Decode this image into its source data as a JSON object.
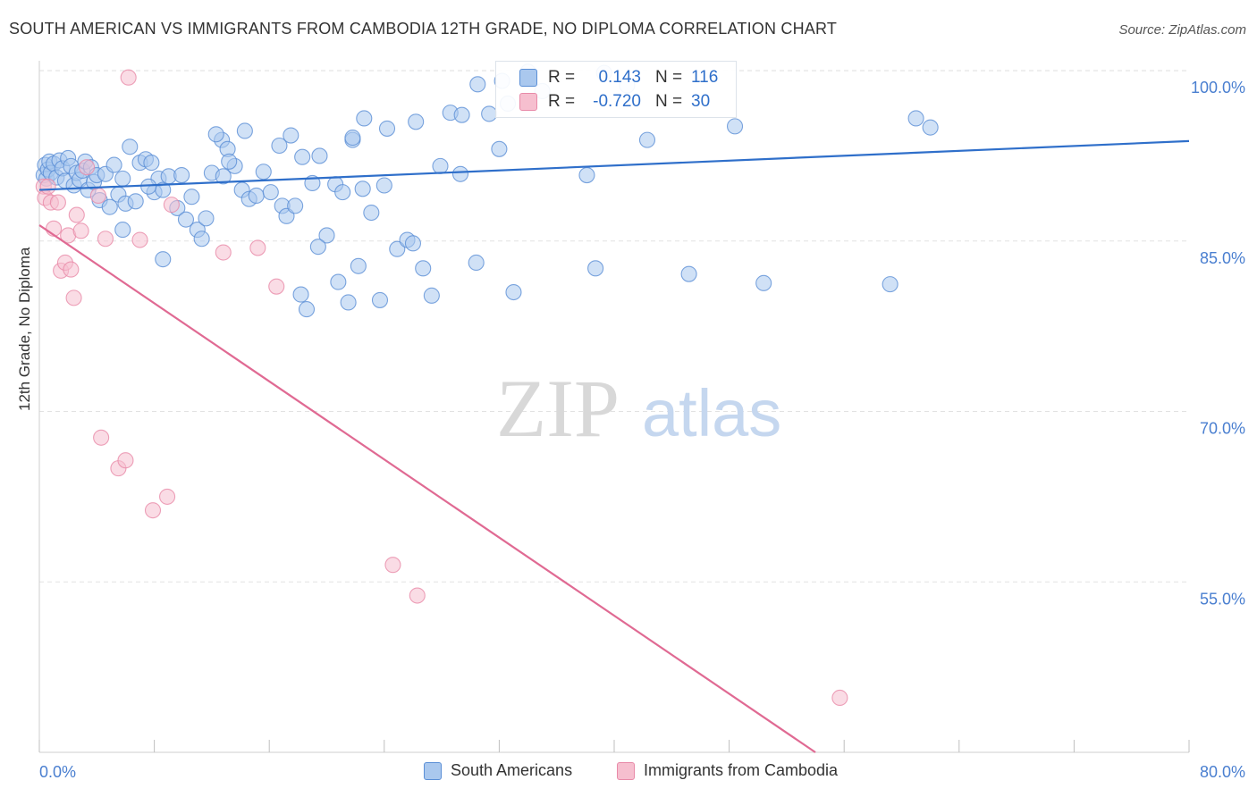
{
  "header": {
    "title": "SOUTH AMERICAN VS IMMIGRANTS FROM CAMBODIA 12TH GRADE, NO DIPLOMA CORRELATION CHART",
    "source": "Source: ZipAtlas.com"
  },
  "watermark": {
    "zip": "ZIP",
    "atlas": "atlas"
  },
  "stats": {
    "r_label": "R =",
    "n_label": "N =",
    "rows": [
      {
        "r": "0.143",
        "n": "116"
      },
      {
        "r": "-0.720",
        "n": "30"
      }
    ]
  },
  "legend": {
    "items": [
      "South Americans",
      "Immigrants from Cambodia"
    ]
  },
  "colors": {
    "blue_fill": "#aac8ee",
    "blue_stroke": "#5b8fd6",
    "blue_line": "#2f6fca",
    "pink_fill": "#f6bfcf",
    "pink_stroke": "#e88aa8",
    "pink_line": "#e06a93",
    "tick_text": "#4a7fd0",
    "grid": "#e2e2e2"
  },
  "chart_data": {
    "type": "scatter",
    "title": "SOUTH AMERICAN VS IMMIGRANTS FROM CAMBODIA 12TH GRADE, NO DIPLOMA CORRELATION CHART",
    "xlabel": "",
    "ylabel": "12th Grade, No Diploma",
    "xlim": [
      0,
      80
    ],
    "ylim": [
      40,
      101.5
    ],
    "x_tick_labels": [
      "0.0%",
      "80.0%"
    ],
    "y_ticks": [
      55,
      70,
      85,
      100
    ],
    "y_tick_labels": [
      "55.0%",
      "70.0%",
      "85.0%",
      "100.0%"
    ],
    "grid": true,
    "legend_position": "bottom",
    "series": [
      {
        "name": "South Americans",
        "r": 0.143,
        "n": 116,
        "trend": {
          "x0": 0,
          "y0": 89.5,
          "x1": 80,
          "y1": 93.8
        },
        "points": [
          [
            0.3,
            90.8
          ],
          [
            0.4,
            91.7
          ],
          [
            0.5,
            90.5
          ],
          [
            0.6,
            91.3
          ],
          [
            0.7,
            92.0
          ],
          [
            0.8,
            91.0
          ],
          [
            1.0,
            91.8
          ],
          [
            1.2,
            90.6
          ],
          [
            1.4,
            92.1
          ],
          [
            1.6,
            91.4
          ],
          [
            1.8,
            90.3
          ],
          [
            2.0,
            92.3
          ],
          [
            2.2,
            91.6
          ],
          [
            2.4,
            89.9
          ],
          [
            2.6,
            91.0
          ],
          [
            2.8,
            90.4
          ],
          [
            3.0,
            91.2
          ],
          [
            3.2,
            92.0
          ],
          [
            3.4,
            89.5
          ],
          [
            3.6,
            91.5
          ],
          [
            3.8,
            90.2
          ],
          [
            4.0,
            90.8
          ],
          [
            4.2,
            88.6
          ],
          [
            4.6,
            90.9
          ],
          [
            4.9,
            88.0
          ],
          [
            5.2,
            91.7
          ],
          [
            5.5,
            89.1
          ],
          [
            5.8,
            90.5
          ],
          [
            6.0,
            88.3
          ],
          [
            6.3,
            93.3
          ],
          [
            6.7,
            88.5
          ],
          [
            7.0,
            91.9
          ],
          [
            7.4,
            92.2
          ],
          [
            7.8,
            91.9
          ],
          [
            8.0,
            89.3
          ],
          [
            8.3,
            90.5
          ],
          [
            8.6,
            89.5
          ],
          [
            9.0,
            90.7
          ],
          [
            9.6,
            87.9
          ],
          [
            9.9,
            90.8
          ],
          [
            10.2,
            86.9
          ],
          [
            10.6,
            88.9
          ],
          [
            11.0,
            86.0
          ],
          [
            11.3,
            85.2
          ],
          [
            11.6,
            87.0
          ],
          [
            12.0,
            91.0
          ],
          [
            12.7,
            93.9
          ],
          [
            13.1,
            93.1
          ],
          [
            13.6,
            91.6
          ],
          [
            14.1,
            89.5
          ],
          [
            14.6,
            88.7
          ],
          [
            15.1,
            89.0
          ],
          [
            15.6,
            91.1
          ],
          [
            16.1,
            89.3
          ],
          [
            16.9,
            88.1
          ],
          [
            17.2,
            87.2
          ],
          [
            17.8,
            88.1
          ],
          [
            18.3,
            92.4
          ],
          [
            19.0,
            90.1
          ],
          [
            19.5,
            92.5
          ],
          [
            20.0,
            85.5
          ],
          [
            20.6,
            90.0
          ],
          [
            21.1,
            89.3
          ],
          [
            21.8,
            93.9
          ],
          [
            22.5,
            89.6
          ],
          [
            23.1,
            87.5
          ],
          [
            24.0,
            89.9
          ],
          [
            24.9,
            84.3
          ],
          [
            25.6,
            85.1
          ],
          [
            26.0,
            84.8
          ],
          [
            26.7,
            82.6
          ],
          [
            27.9,
            91.6
          ],
          [
            29.3,
            90.9
          ],
          [
            30.4,
            83.1
          ],
          [
            32.0,
            93.1
          ],
          [
            33.0,
            80.5
          ],
          [
            38.1,
            90.8
          ],
          [
            38.7,
            82.6
          ],
          [
            42.3,
            93.9
          ],
          [
            45.2,
            82.1
          ],
          [
            48.4,
            95.1
          ],
          [
            50.4,
            81.3
          ],
          [
            59.2,
            81.2
          ],
          [
            61.0,
            95.8
          ],
          [
            62.0,
            95.0
          ],
          [
            5.8,
            86.0
          ],
          [
            8.6,
            83.4
          ],
          [
            12.3,
            94.4
          ],
          [
            14.3,
            94.7
          ],
          [
            17.5,
            94.3
          ],
          [
            21.8,
            94.1
          ],
          [
            24.2,
            94.9
          ],
          [
            26.2,
            95.5
          ],
          [
            28.6,
            96.3
          ],
          [
            29.4,
            96.1
          ],
          [
            30.5,
            98.8
          ],
          [
            31.3,
            96.2
          ],
          [
            32.2,
            99.1
          ],
          [
            32.6,
            97.1
          ],
          [
            34.0,
            99.9
          ],
          [
            35.0,
            98.2
          ],
          [
            39.3,
            99.8
          ],
          [
            40.9,
            98.7
          ],
          [
            22.6,
            95.8
          ],
          [
            20.8,
            81.4
          ],
          [
            19.4,
            84.5
          ],
          [
            21.5,
            79.6
          ],
          [
            23.7,
            79.8
          ],
          [
            22.2,
            82.8
          ],
          [
            18.2,
            80.3
          ],
          [
            18.6,
            79.0
          ],
          [
            27.3,
            80.2
          ],
          [
            13.2,
            92.0
          ],
          [
            16.7,
            93.4
          ],
          [
            12.8,
            90.7
          ],
          [
            7.6,
            89.8
          ]
        ]
      },
      {
        "name": "Immigrants from Cambodia",
        "r": -0.72,
        "n": 30,
        "trend": {
          "x0": 0,
          "y0": 86.4,
          "x1": 54.0,
          "y1": 40.0
        },
        "points": [
          [
            0.3,
            89.8
          ],
          [
            0.4,
            88.8
          ],
          [
            0.6,
            89.8
          ],
          [
            0.8,
            88.4
          ],
          [
            1.0,
            86.1
          ],
          [
            1.3,
            88.4
          ],
          [
            1.5,
            82.4
          ],
          [
            1.8,
            83.1
          ],
          [
            2.0,
            85.5
          ],
          [
            2.2,
            82.5
          ],
          [
            2.4,
            80.0
          ],
          [
            2.6,
            87.3
          ],
          [
            2.9,
            85.9
          ],
          [
            3.3,
            91.5
          ],
          [
            4.1,
            89.0
          ],
          [
            4.3,
            67.7
          ],
          [
            4.6,
            85.2
          ],
          [
            5.5,
            65.0
          ],
          [
            6.0,
            65.7
          ],
          [
            6.2,
            99.4
          ],
          [
            7.0,
            85.1
          ],
          [
            7.9,
            61.3
          ],
          [
            8.9,
            62.5
          ],
          [
            9.2,
            88.2
          ],
          [
            12.8,
            84.0
          ],
          [
            15.2,
            84.4
          ],
          [
            16.5,
            81.0
          ],
          [
            24.6,
            56.5
          ],
          [
            26.3,
            53.8
          ],
          [
            55.7,
            44.8
          ]
        ]
      }
    ]
  }
}
